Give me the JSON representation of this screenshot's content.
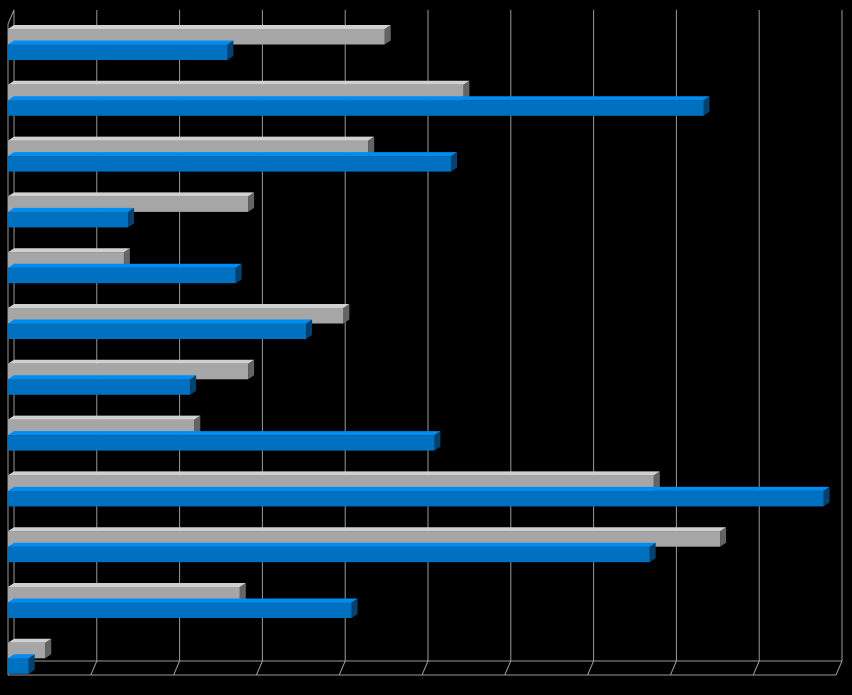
{
  "chart_data": {
    "type": "bar",
    "orientation": "horizontal",
    "style": "3d",
    "title": "",
    "xlabel": "",
    "ylabel": "",
    "xlim": [
      0,
      10
    ],
    "grid": true,
    "legend": "none",
    "background_color": "#000000",
    "grid_color": "#9a9a9a",
    "series": [
      {
        "color": "#a6a6a6",
        "values": [
          4.55,
          5.5,
          4.35,
          2.9,
          1.4,
          4.05,
          2.9,
          2.25,
          7.8,
          8.6,
          2.8,
          0.45
        ]
      },
      {
        "color": "#0070c0",
        "values": [
          2.65,
          8.4,
          5.35,
          1.45,
          2.75,
          3.6,
          2.2,
          5.15,
          9.85,
          7.75,
          4.15,
          0.25
        ]
      }
    ]
  }
}
